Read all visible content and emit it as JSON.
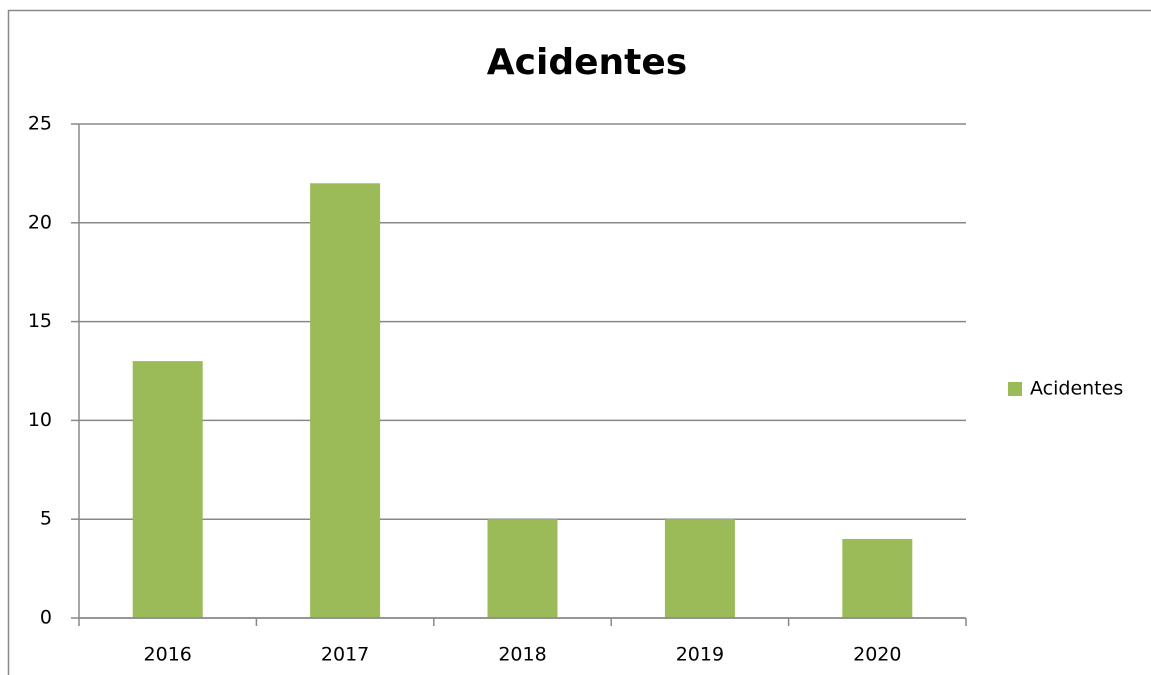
{
  "chart_data": {
    "type": "bar",
    "title": "Acidentes",
    "categories": [
      "2016",
      "2017",
      "2018",
      "2019",
      "2020"
    ],
    "series": [
      {
        "name": "Acidentes",
        "color": "#9bbb59",
        "values": [
          13,
          22,
          5,
          5,
          4
        ]
      }
    ],
    "ylim": [
      0,
      25
    ],
    "yticks": [
      0,
      5,
      10,
      15,
      20,
      25
    ],
    "grid": true,
    "legend": "right"
  }
}
